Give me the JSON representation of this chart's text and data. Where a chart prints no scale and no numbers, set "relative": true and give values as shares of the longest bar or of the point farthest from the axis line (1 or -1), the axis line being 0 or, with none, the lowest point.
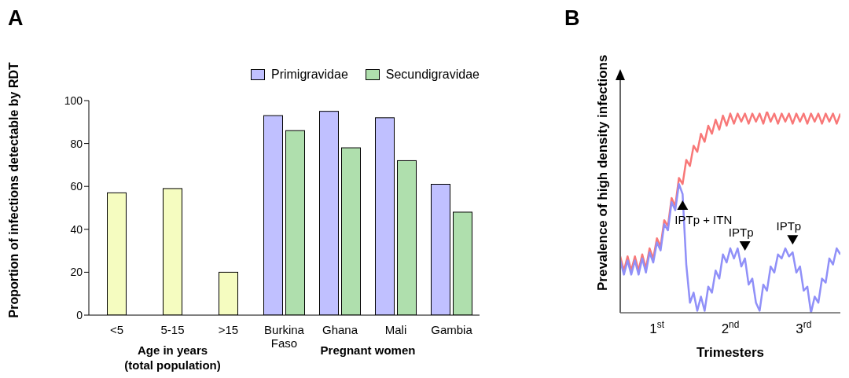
{
  "chart_data": [
    {
      "type": "bar",
      "title": "A",
      "ylabel": "Proportion of infections detectable by RDT",
      "categories": [
        "<5",
        "5-15",
        ">15",
        "Burkina Faso",
        "Ghana",
        "Mali",
        "Gambia"
      ],
      "series": [
        {
          "color": "#f5fcc0",
          "values": [
            57,
            59,
            20,
            null,
            null,
            null,
            null
          ]
        },
        {
          "name": "Primigravidae",
          "color": "#c0c0ff",
          "values": [
            null,
            null,
            null,
            93,
            95,
            92,
            61
          ]
        },
        {
          "name": "Secundigravidae",
          "color": "#afdfad",
          "values": [
            null,
            null,
            null,
            86,
            78,
            72,
            48
          ]
        }
      ],
      "ylim": [
        0,
        100
      ],
      "yticks": [
        0,
        20,
        40,
        60,
        80,
        100
      ],
      "legend": "top right",
      "annotations": [
        "Age in years (total population)",
        "Pregnant women"
      ]
    },
    {
      "type": "line",
      "title": "B",
      "ylabel": "Prevalence of high density infections",
      "xlabel": "Trimesters",
      "relative": true,
      "tick_labels": "x",
      "x": [
        0.5,
        0.55,
        0.6,
        0.65,
        0.7,
        0.75,
        0.8,
        0.85,
        0.9,
        0.95,
        1.0,
        1.05,
        1.1,
        1.15,
        1.2,
        1.25,
        1.3,
        1.35,
        1.4,
        1.45,
        1.5,
        1.55,
        1.6,
        1.65,
        1.7,
        1.75,
        1.8,
        1.85,
        1.9,
        1.95,
        2.0,
        2.05,
        2.1,
        2.15,
        2.2,
        2.25,
        2.3,
        2.35,
        2.4,
        2.45,
        2.5,
        2.55,
        2.6,
        2.65,
        2.7,
        2.75,
        2.8,
        2.85,
        2.9,
        2.95,
        3.0,
        3.05,
        3.1,
        3.15,
        3.2,
        3.25,
        3.3,
        3.35,
        3.4,
        3.45,
        3.5
      ],
      "series": [
        {
          "color": "#f87878",
          "values": [
            0.28,
            0.21,
            0.28,
            0.21,
            0.28,
            0.21,
            0.29,
            0.22,
            0.32,
            0.27,
            0.37,
            0.33,
            0.46,
            0.43,
            0.57,
            0.53,
            0.67,
            0.64,
            0.76,
            0.73,
            0.83,
            0.8,
            0.89,
            0.85,
            0.93,
            0.89,
            0.96,
            0.91,
            0.98,
            0.93,
            0.99,
            0.94,
            0.99,
            0.95,
            0.99,
            0.94,
            0.99,
            0.95,
            0.99,
            0.94,
            1.0,
            0.95,
            0.99,
            0.94,
            0.99,
            0.95,
            0.99,
            0.94,
            0.99,
            0.95,
            0.99,
            0.94,
            0.99,
            0.95,
            0.99,
            0.94,
            0.99,
            0.95,
            0.99,
            0.94,
            0.99
          ]
        },
        {
          "color": "#9090f8",
          "values": [
            0.26,
            0.19,
            0.26,
            0.19,
            0.26,
            0.19,
            0.27,
            0.2,
            0.3,
            0.25,
            0.35,
            0.31,
            0.44,
            0.41,
            0.55,
            0.51,
            0.64,
            0.59,
            0.24,
            0.05,
            0.1,
            0.01,
            0.08,
            0.01,
            0.13,
            0.1,
            0.21,
            0.17,
            0.29,
            0.25,
            0.32,
            0.27,
            0.32,
            0.23,
            0.27,
            0.14,
            0.17,
            0.05,
            0.01,
            0.14,
            0.11,
            0.23,
            0.2,
            0.29,
            0.27,
            0.32,
            0.28,
            0.3,
            0.2,
            0.23,
            0.11,
            0.13,
            0,
            0.08,
            0.05,
            0.17,
            0.15,
            0.27,
            0.24,
            0.32,
            0.29
          ]
        }
      ],
      "xlim": [
        0.5,
        3.5
      ],
      "xticks": [
        {
          "value": 1,
          "label": "1$^{st}$"
        },
        {
          "value": 2,
          "label": "2$^{nd}$"
        },
        {
          "value": 3,
          "label": "3$^{rd}$"
        }
      ],
      "annotations": [
        {
          "text": "IPTp + ITN",
          "x": 1.35,
          "y": 0.59
        },
        {
          "text": "IPTp",
          "x": 2.2,
          "y": 0.27
        },
        {
          "text": "IPTp",
          "x": 2.85,
          "y": 0.3
        }
      ]
    }
  ]
}
